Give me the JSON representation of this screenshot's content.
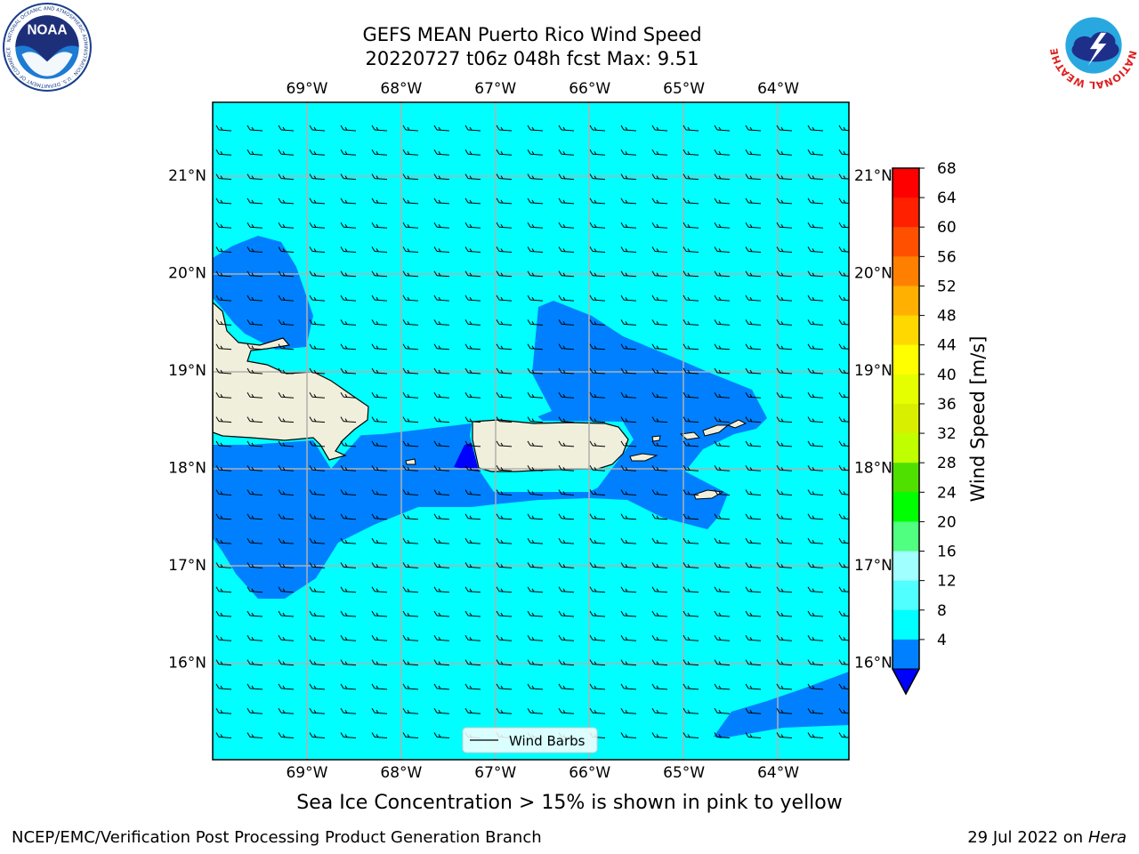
{
  "title_line1": "GEFS MEAN Puerto Rico Wind Speed",
  "title_line2": "20220727 t06z 048h fcst   Max: 9.51",
  "map": {
    "projection_extent": {
      "lon_min": -70.0,
      "lon_max": -63.25,
      "lat_min": 15.0,
      "lat_max": 21.75
    },
    "lon_ticks": [
      {
        "value": -69,
        "label": "69°W"
      },
      {
        "value": -68,
        "label": "68°W"
      },
      {
        "value": -67,
        "label": "67°W"
      },
      {
        "value": -66,
        "label": "66°W"
      },
      {
        "value": -65,
        "label": "65°W"
      },
      {
        "value": -64,
        "label": "64°W"
      }
    ],
    "lat_ticks": [
      {
        "value": 21,
        "label": "21°N"
      },
      {
        "value": 20,
        "label": "20°N"
      },
      {
        "value": 19,
        "label": "19°N"
      },
      {
        "value": 18,
        "label": "18°N"
      },
      {
        "value": 17,
        "label": "17°N"
      },
      {
        "value": 16,
        "label": "16°N"
      }
    ],
    "legend_label": "Wind Barbs",
    "ocean_color_8_12": "#00ffff",
    "band_color_4_8": "#0080ff",
    "band_color_below_4": "#0000ff",
    "land_color": "#efefdb",
    "grid_color": "#b0b0b0"
  },
  "colorbar": {
    "label": "Wind Speed [m/s]",
    "ticks": [
      "68",
      "64",
      "60",
      "56",
      "52",
      "48",
      "44",
      "40",
      "36",
      "32",
      "28",
      "24",
      "20",
      "16",
      "12",
      "8",
      "4"
    ],
    "colors": [
      "#ff0000",
      "#ff2000",
      "#ff5000",
      "#ff8000",
      "#ffb000",
      "#ffd800",
      "#ffff00",
      "#e6ff00",
      "#d8f000",
      "#c0ff00",
      "#50e000",
      "#00ff00",
      "#50ff80",
      "#a0ffff",
      "#50ffff",
      "#00ffff",
      "#0080ff"
    ],
    "extend_color": "#0000ff"
  },
  "footnote": "Sea Ice Concentration > 15% is shown in pink to yellow",
  "credit_left": "NCEP/EMC/Verification Post Processing Product Generation Branch",
  "credit_right_date": "29 Jul 2022 on ",
  "credit_right_host": "Hera",
  "logos": {
    "noaa_text": "NOAA",
    "noaa_ring_text": "NATIONAL OCEANIC AND ATMOSPHERIC ADMINISTRATION · U.S. DEPARTMENT OF COMMERCE",
    "nws_ring_text": "NATIONAL WEATHER SERVICE"
  }
}
